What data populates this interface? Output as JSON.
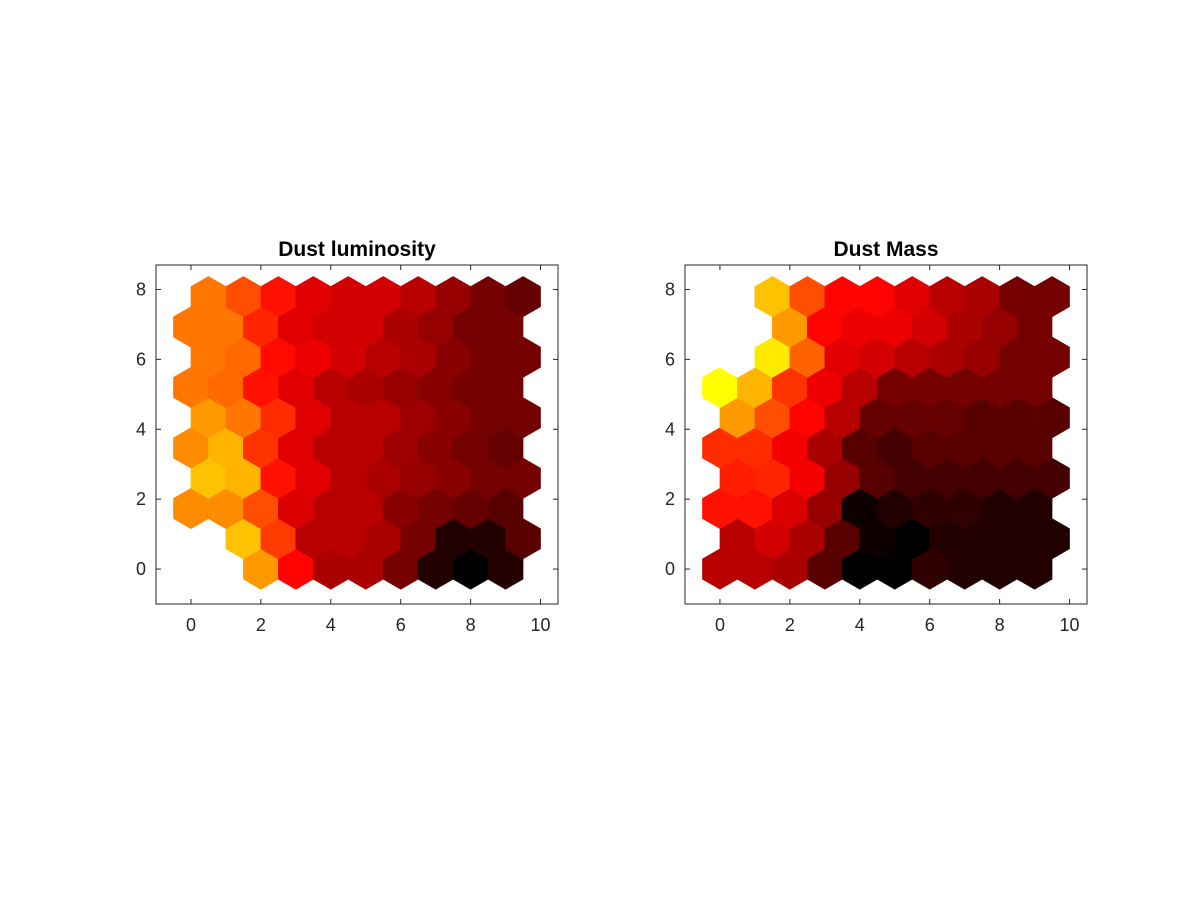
{
  "chart_data": [
    {
      "type": "heatmap",
      "layout": "hexagonal",
      "title": "Dust luminosity",
      "xlim": [
        -1,
        10.5
      ],
      "ylim": [
        -1,
        8.7
      ],
      "xticks": [
        0,
        2,
        4,
        6,
        8,
        10
      ],
      "yticks": [
        0,
        2,
        4,
        6,
        8
      ],
      "colormap": "hot",
      "grid": {
        "columns": 10,
        "rows": 10,
        "row_step": 0.866,
        "odd_row_offset": 0.5
      },
      "values": [
        [
          1.0,
          1.0,
          0.6,
          0.38,
          0.25,
          0.25,
          0.17,
          0.05,
          0.0,
          0.05
        ],
        [
          1.0,
          0.66,
          0.46,
          0.27,
          0.27,
          0.25,
          0.17,
          0.05,
          0.05,
          0.13
        ],
        [
          0.58,
          0.58,
          0.49,
          0.32,
          0.27,
          0.27,
          0.2,
          0.17,
          0.15,
          0.13
        ],
        [
          0.66,
          0.64,
          0.4,
          0.33,
          0.27,
          0.25,
          0.22,
          0.2,
          0.17,
          0.17
        ],
        [
          0.58,
          0.64,
          0.45,
          0.33,
          0.27,
          0.27,
          0.23,
          0.2,
          0.17,
          0.15
        ],
        [
          0.6,
          0.55,
          0.44,
          0.33,
          0.27,
          0.27,
          0.23,
          0.2,
          0.17,
          0.17
        ],
        [
          0.55,
          0.53,
          0.4,
          0.33,
          0.27,
          0.25,
          0.22,
          0.2,
          0.17,
          0.17
        ],
        [
          0.55,
          0.53,
          0.39,
          0.35,
          0.31,
          0.27,
          0.25,
          0.2,
          0.17,
          0.17
        ],
        [
          0.55,
          0.55,
          0.43,
          0.33,
          0.31,
          0.31,
          0.25,
          0.22,
          0.17,
          0.17
        ],
        [
          0.55,
          0.49,
          0.4,
          0.33,
          0.31,
          0.31,
          0.27,
          0.22,
          0.17,
          0.15
        ]
      ]
    },
    {
      "type": "heatmap",
      "layout": "hexagonal",
      "title": "Dust Mass",
      "xlim": [
        -1,
        10.5
      ],
      "ylim": [
        -1,
        8.7
      ],
      "xticks": [
        0,
        2,
        4,
        6,
        8,
        10
      ],
      "yticks": [
        0,
        2,
        4,
        6,
        8
      ],
      "colormap": "hot",
      "grid": {
        "columns": 10,
        "rows": 10,
        "row_step": 0.866,
        "odd_row_offset": 0.5
      },
      "values": [
        [
          0.27,
          0.27,
          0.25,
          0.13,
          0.0,
          0.0,
          0.07,
          0.05,
          0.05,
          0.05
        ],
        [
          0.27,
          0.31,
          0.25,
          0.13,
          0.02,
          0.0,
          0.05,
          0.05,
          0.05,
          0.05
        ],
        [
          0.4,
          0.4,
          0.32,
          0.22,
          0.02,
          0.05,
          0.07,
          0.07,
          0.05,
          0.05
        ],
        [
          0.42,
          0.43,
          0.36,
          0.22,
          0.13,
          0.1,
          0.1,
          0.1,
          0.1,
          0.1
        ],
        [
          0.44,
          0.44,
          0.36,
          0.25,
          0.13,
          0.1,
          0.13,
          0.13,
          0.13,
          0.13
        ],
        [
          0.6,
          0.49,
          0.38,
          0.27,
          0.15,
          0.15,
          0.15,
          0.13,
          0.13,
          0.13
        ],
        [
          0.75,
          0.64,
          0.45,
          0.35,
          0.27,
          0.17,
          0.17,
          0.17,
          0.17,
          0.17
        ],
        [
          1.0,
          0.72,
          0.52,
          0.33,
          0.31,
          0.27,
          0.25,
          0.22,
          0.17,
          0.17
        ],
        [
          1.0,
          1.0,
          0.6,
          0.38,
          0.35,
          0.35,
          0.31,
          0.25,
          0.22,
          0.17
        ],
        [
          1.0,
          0.66,
          0.49,
          0.38,
          0.38,
          0.33,
          0.27,
          0.25,
          0.17,
          0.17
        ]
      ]
    }
  ]
}
